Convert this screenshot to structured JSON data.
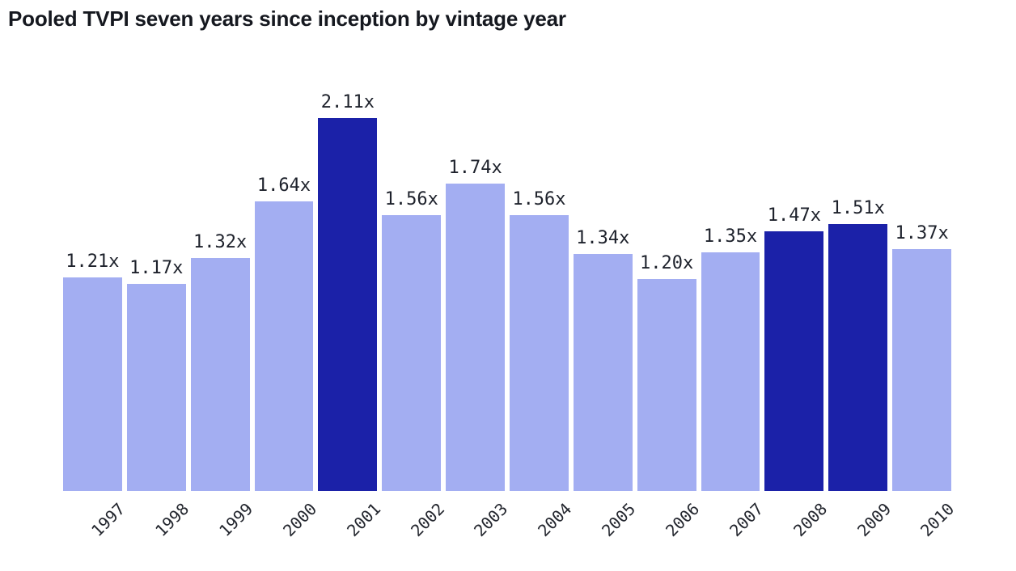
{
  "title": "Pooled TVPI seven years since inception by vintage year",
  "colors": {
    "bar": "#a3aef2",
    "bar_highlight": "#1b21a8",
    "value_label": "#1d212b",
    "tick_label": "#23262e",
    "title": "#15181f",
    "background": "#ffffff"
  },
  "chart_data": {
    "type": "bar",
    "title": "Pooled TVPI seven years since inception by vintage year",
    "xlabel": "",
    "ylabel": "",
    "categories": [
      "1997",
      "1998",
      "1999",
      "2000",
      "2001",
      "2002",
      "2003",
      "2004",
      "2005",
      "2006",
      "2007",
      "2008",
      "2009",
      "2010"
    ],
    "values": [
      1.21,
      1.17,
      1.32,
      1.64,
      2.11,
      1.56,
      1.74,
      1.56,
      1.34,
      1.2,
      1.35,
      1.47,
      1.51,
      1.37
    ],
    "value_labels": [
      "1.21x",
      "1.17x",
      "1.32x",
      "1.64x",
      "2.11x",
      "1.56x",
      "1.74x",
      "1.56x",
      "1.34x",
      "1.20x",
      "1.35x",
      "1.47x",
      "1.51x",
      "1.37x"
    ],
    "highlighted_categories": [
      "2001",
      "2008",
      "2009"
    ],
    "value_suffix": "x",
    "ylim": [
      0,
      2.11
    ],
    "grid": false,
    "legend": false,
    "x_tick_rotation_deg": -45
  }
}
